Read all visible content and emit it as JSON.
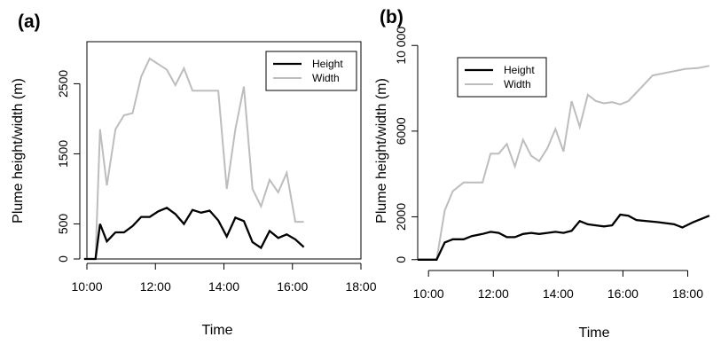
{
  "colors": {
    "height": "#000000",
    "width": "#bdbdbd",
    "axis": "#000000"
  },
  "chart_data": [
    {
      "type": "line",
      "panel_label": "(a)",
      "xlabel": "Time",
      "ylabel": "Plume height/width (m)",
      "xticks": [
        {
          "value": 600,
          "label": "10:00"
        },
        {
          "value": 720,
          "label": "12:00"
        },
        {
          "value": 840,
          "label": "14:00"
        },
        {
          "value": 960,
          "label": "16:00"
        },
        {
          "value": 1080,
          "label": "18:00"
        }
      ],
      "yticks": [
        {
          "value": 0,
          "label": "0"
        },
        {
          "value": 500,
          "label": "500"
        },
        {
          "value": 1500,
          "label": "1500"
        },
        {
          "value": 2500,
          "label": "2500"
        }
      ],
      "xlim": [
        "10:00",
        "18:00"
      ],
      "ylim": [
        0,
        3100
      ],
      "grid": false,
      "legend_position": "top-right",
      "series": [
        {
          "name": "Height",
          "color_key": "height",
          "points": [
            [
              "09:55",
              0
            ],
            [
              "10:05",
              0
            ],
            [
              "10:15",
              0
            ],
            [
              "10:23",
              500
            ],
            [
              "10:35",
              250
            ],
            [
              "10:50",
              380
            ],
            [
              "11:05",
              380
            ],
            [
              "11:20",
              470
            ],
            [
              "11:35",
              600
            ],
            [
              "11:50",
              600
            ],
            [
              "12:05",
              680
            ],
            [
              "12:20",
              730
            ],
            [
              "12:35",
              640
            ],
            [
              "12:50",
              500
            ],
            [
              "13:05",
              700
            ],
            [
              "13:20",
              660
            ],
            [
              "13:35",
              690
            ],
            [
              "13:50",
              550
            ],
            [
              "14:05",
              320
            ],
            [
              "14:20",
              590
            ],
            [
              "14:35",
              540
            ],
            [
              "14:50",
              240
            ],
            [
              "15:05",
              160
            ],
            [
              "15:20",
              400
            ],
            [
              "15:35",
              300
            ],
            [
              "15:50",
              350
            ],
            [
              "16:05",
              280
            ],
            [
              "16:20",
              170
            ]
          ]
        },
        {
          "name": "Width",
          "color_key": "width",
          "points": [
            [
              "09:55",
              0
            ],
            [
              "10:05",
              0
            ],
            [
              "10:15",
              0
            ],
            [
              "10:23",
              1850
            ],
            [
              "10:35",
              1050
            ],
            [
              "10:50",
              1850
            ],
            [
              "11:05",
              2050
            ],
            [
              "11:20",
              2080
            ],
            [
              "11:35",
              2600
            ],
            [
              "11:50",
              2860
            ],
            [
              "12:05",
              2780
            ],
            [
              "12:20",
              2700
            ],
            [
              "12:35",
              2480
            ],
            [
              "12:50",
              2720
            ],
            [
              "13:05",
              2400
            ],
            [
              "13:20",
              2400
            ],
            [
              "13:35",
              2400
            ],
            [
              "13:50",
              2400
            ],
            [
              "14:05",
              1000
            ],
            [
              "14:20",
              1850
            ],
            [
              "14:35",
              2460
            ],
            [
              "14:50",
              1000
            ],
            [
              "15:05",
              750
            ],
            [
              "15:20",
              1130
            ],
            [
              "15:35",
              950
            ],
            [
              "15:50",
              1230
            ],
            [
              "16:05",
              530
            ],
            [
              "16:20",
              530
            ]
          ]
        }
      ]
    },
    {
      "type": "line",
      "panel_label": "(b)",
      "xlabel": "Time",
      "ylabel": "Plume height/width (m)",
      "xticks": [
        {
          "value": 600,
          "label": "10:00"
        },
        {
          "value": 720,
          "label": "12:00"
        },
        {
          "value": 840,
          "label": "14:00"
        },
        {
          "value": 960,
          "label": "16:00"
        },
        {
          "value": 1080,
          "label": "18:00"
        }
      ],
      "yticks": [
        {
          "value": 0,
          "label": "0"
        },
        {
          "value": 2000,
          "label": "2000"
        },
        {
          "value": 6000,
          "label": "6000"
        },
        {
          "value": 10000,
          "label": "10 000"
        }
      ],
      "xlim": [
        "09:40",
        "18:55"
      ],
      "ylim": [
        -300,
        10300
      ],
      "grid": false,
      "legend_position": "top-left",
      "series": [
        {
          "name": "Height",
          "color_key": "height",
          "points": [
            [
              "09:40",
              0
            ],
            [
              "10:00",
              0
            ],
            [
              "10:15",
              0
            ],
            [
              "10:30",
              800
            ],
            [
              "10:45",
              950
            ],
            [
              "11:05",
              950
            ],
            [
              "11:20",
              1100
            ],
            [
              "11:40",
              1200
            ],
            [
              "11:55",
              1300
            ],
            [
              "12:10",
              1250
            ],
            [
              "12:25",
              1050
            ],
            [
              "12:40",
              1050
            ],
            [
              "12:55",
              1200
            ],
            [
              "13:10",
              1250
            ],
            [
              "13:25",
              1200
            ],
            [
              "13:40",
              1250
            ],
            [
              "13:55",
              1300
            ],
            [
              "14:10",
              1250
            ],
            [
              "14:25",
              1350
            ],
            [
              "14:40",
              1800
            ],
            [
              "14:55",
              1650
            ],
            [
              "15:10",
              1600
            ],
            [
              "15:25",
              1550
            ],
            [
              "15:40",
              1600
            ],
            [
              "15:55",
              2100
            ],
            [
              "16:10",
              2050
            ],
            [
              "16:25",
              1850
            ],
            [
              "17:05",
              1750
            ],
            [
              "17:35",
              1650
            ],
            [
              "17:50",
              1500
            ],
            [
              "18:10",
              1750
            ],
            [
              "18:40",
              2050
            ]
          ]
        },
        {
          "name": "Width",
          "color_key": "width",
          "points": [
            [
              "09:40",
              0
            ],
            [
              "10:00",
              0
            ],
            [
              "10:15",
              0
            ],
            [
              "10:30",
              2300
            ],
            [
              "10:45",
              3200
            ],
            [
              "11:05",
              3600
            ],
            [
              "11:40",
              3600
            ],
            [
              "11:55",
              4950
            ],
            [
              "12:10",
              4950
            ],
            [
              "12:25",
              5400
            ],
            [
              "12:40",
              4350
            ],
            [
              "12:55",
              5600
            ],
            [
              "13:10",
              4850
            ],
            [
              "13:25",
              4600
            ],
            [
              "13:40",
              5200
            ],
            [
              "13:55",
              6100
            ],
            [
              "14:10",
              5050
            ],
            [
              "14:25",
              7400
            ],
            [
              "14:40",
              6200
            ],
            [
              "14:55",
              7700
            ],
            [
              "15:10",
              7400
            ],
            [
              "15:25",
              7300
            ],
            [
              "15:40",
              7350
            ],
            [
              "15:55",
              7250
            ],
            [
              "16:10",
              7400
            ],
            [
              "16:25",
              7800
            ],
            [
              "16:40",
              8200
            ],
            [
              "16:55",
              8600
            ],
            [
              "17:35",
              8800
            ],
            [
              "17:55",
              8900
            ],
            [
              "18:20",
              8950
            ],
            [
              "18:40",
              9050
            ]
          ]
        }
      ]
    }
  ]
}
